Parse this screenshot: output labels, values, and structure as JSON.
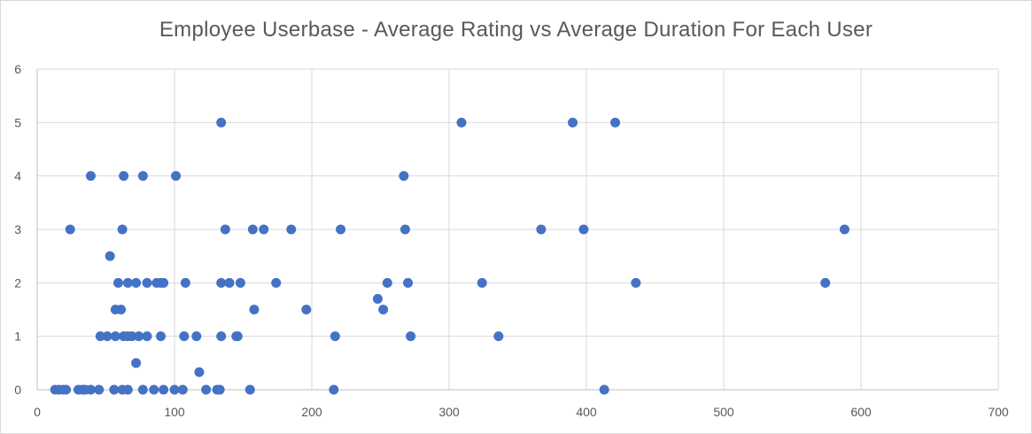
{
  "chart_data": {
    "type": "scatter",
    "title": "Employee Userbase - Average Rating vs Average Duration For Each User",
    "xlabel": "",
    "ylabel": "",
    "xlim": [
      0,
      700
    ],
    "ylim": [
      0,
      6
    ],
    "x_ticks": [
      0,
      100,
      200,
      300,
      400,
      500,
      600,
      700
    ],
    "y_ticks": [
      0,
      1,
      2,
      3,
      4,
      5,
      6
    ],
    "grid": true,
    "legend": "none",
    "marker_color": "#4472C4",
    "points": [
      {
        "x": 13,
        "y": 0
      },
      {
        "x": 16,
        "y": 0
      },
      {
        "x": 19,
        "y": 0
      },
      {
        "x": 21,
        "y": 0
      },
      {
        "x": 30,
        "y": 0
      },
      {
        "x": 33,
        "y": 0
      },
      {
        "x": 35,
        "y": 0
      },
      {
        "x": 39,
        "y": 0
      },
      {
        "x": 45,
        "y": 0
      },
      {
        "x": 56,
        "y": 0
      },
      {
        "x": 62,
        "y": 0
      },
      {
        "x": 66,
        "y": 0
      },
      {
        "x": 77,
        "y": 0
      },
      {
        "x": 85,
        "y": 0
      },
      {
        "x": 92,
        "y": 0
      },
      {
        "x": 100,
        "y": 0
      },
      {
        "x": 106,
        "y": 0
      },
      {
        "x": 123,
        "y": 0
      },
      {
        "x": 131,
        "y": 0
      },
      {
        "x": 133,
        "y": 0
      },
      {
        "x": 155,
        "y": 0
      },
      {
        "x": 216,
        "y": 0
      },
      {
        "x": 413,
        "y": 0
      },
      {
        "x": 118,
        "y": 0.33
      },
      {
        "x": 72,
        "y": 0.5
      },
      {
        "x": 46,
        "y": 1
      },
      {
        "x": 51,
        "y": 1
      },
      {
        "x": 57,
        "y": 1
      },
      {
        "x": 63,
        "y": 1
      },
      {
        "x": 66,
        "y": 1
      },
      {
        "x": 69,
        "y": 1
      },
      {
        "x": 74,
        "y": 1
      },
      {
        "x": 80,
        "y": 1
      },
      {
        "x": 90,
        "y": 1
      },
      {
        "x": 107,
        "y": 1
      },
      {
        "x": 116,
        "y": 1
      },
      {
        "x": 134,
        "y": 1
      },
      {
        "x": 145,
        "y": 1
      },
      {
        "x": 146,
        "y": 1
      },
      {
        "x": 217,
        "y": 1
      },
      {
        "x": 272,
        "y": 1
      },
      {
        "x": 336,
        "y": 1
      },
      {
        "x": 57,
        "y": 1.5
      },
      {
        "x": 61,
        "y": 1.5
      },
      {
        "x": 158,
        "y": 1.5
      },
      {
        "x": 196,
        "y": 1.5
      },
      {
        "x": 252,
        "y": 1.5
      },
      {
        "x": 248,
        "y": 1.7
      },
      {
        "x": 59,
        "y": 2
      },
      {
        "x": 66,
        "y": 2
      },
      {
        "x": 72,
        "y": 2
      },
      {
        "x": 80,
        "y": 2
      },
      {
        "x": 87,
        "y": 2
      },
      {
        "x": 90,
        "y": 2
      },
      {
        "x": 92,
        "y": 2
      },
      {
        "x": 108,
        "y": 2
      },
      {
        "x": 134,
        "y": 2
      },
      {
        "x": 140,
        "y": 2
      },
      {
        "x": 148,
        "y": 2
      },
      {
        "x": 174,
        "y": 2
      },
      {
        "x": 255,
        "y": 2
      },
      {
        "x": 270,
        "y": 2
      },
      {
        "x": 324,
        "y": 2
      },
      {
        "x": 436,
        "y": 2
      },
      {
        "x": 574,
        "y": 2
      },
      {
        "x": 53,
        "y": 2.5
      },
      {
        "x": 24,
        "y": 3
      },
      {
        "x": 62,
        "y": 3
      },
      {
        "x": 137,
        "y": 3
      },
      {
        "x": 157,
        "y": 3
      },
      {
        "x": 165,
        "y": 3
      },
      {
        "x": 185,
        "y": 3
      },
      {
        "x": 221,
        "y": 3
      },
      {
        "x": 268,
        "y": 3
      },
      {
        "x": 367,
        "y": 3
      },
      {
        "x": 398,
        "y": 3
      },
      {
        "x": 588,
        "y": 3
      },
      {
        "x": 39,
        "y": 4
      },
      {
        "x": 63,
        "y": 4
      },
      {
        "x": 77,
        "y": 4
      },
      {
        "x": 101,
        "y": 4
      },
      {
        "x": 267,
        "y": 4
      },
      {
        "x": 134,
        "y": 5
      },
      {
        "x": 309,
        "y": 5
      },
      {
        "x": 390,
        "y": 5
      },
      {
        "x": 421,
        "y": 5
      }
    ]
  }
}
